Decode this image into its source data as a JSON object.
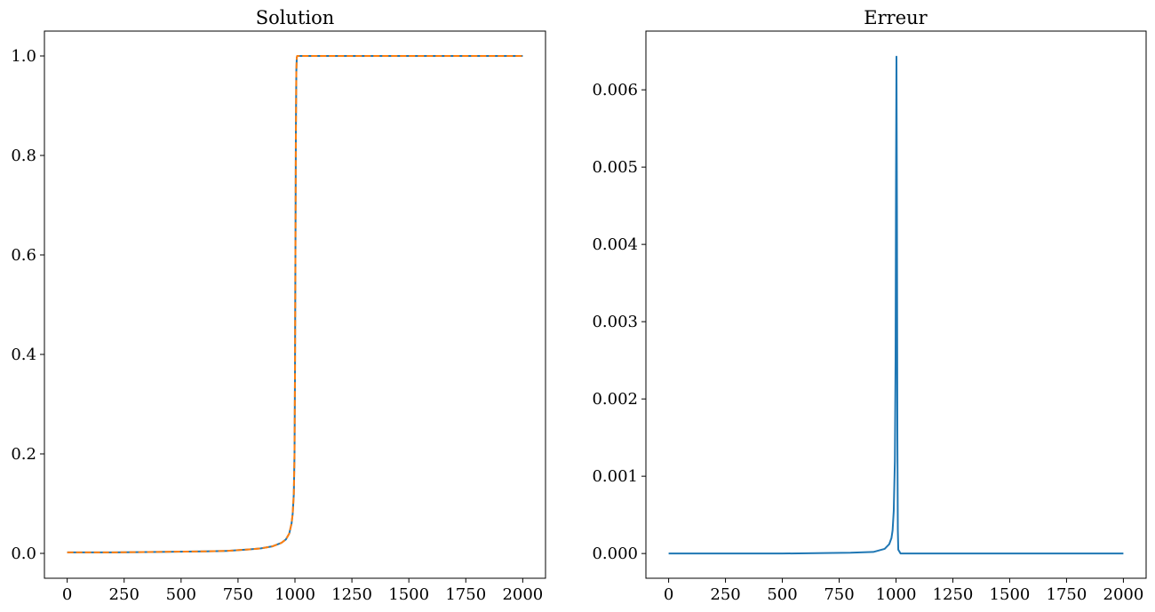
{
  "chart_data": [
    {
      "type": "line",
      "title": "Solution",
      "xlabel": "",
      "ylabel": "",
      "xlim": [
        -100,
        2100
      ],
      "ylim": [
        -0.05,
        1.05
      ],
      "xticks": [
        0,
        250,
        500,
        750,
        1000,
        1250,
        1500,
        1750,
        2000
      ],
      "xtick_labels": [
        "0",
        "250",
        "500",
        "750",
        "1000",
        "1250",
        "1500",
        "1750",
        "2000"
      ],
      "yticks": [
        0.0,
        0.2,
        0.4,
        0.6,
        0.8,
        1.0
      ],
      "ytick_labels": [
        "0.0",
        "0.2",
        "0.4",
        "0.6",
        "0.8",
        "1.0"
      ],
      "grid": false,
      "series": [
        {
          "color": "#1f77b4",
          "style": "solid",
          "x": [
            0,
            200,
            400,
            600,
            700,
            800,
            850,
            900,
            940,
            960,
            975,
            985,
            990,
            995,
            998,
            1000,
            1002,
            1004,
            1006,
            1008,
            1010,
            1020,
            1100,
            1500,
            2000
          ],
          "y": [
            0.002,
            0.002,
            0.003,
            0.004,
            0.005,
            0.008,
            0.01,
            0.014,
            0.021,
            0.028,
            0.04,
            0.06,
            0.08,
            0.12,
            0.2,
            0.35,
            0.6,
            0.85,
            0.97,
            0.997,
            1.0,
            1.0,
            1.0,
            1.0,
            1.0
          ]
        },
        {
          "color": "#ff7f0e",
          "style": "dashed",
          "x": [
            0,
            200,
            400,
            600,
            700,
            800,
            850,
            900,
            940,
            960,
            975,
            985,
            990,
            995,
            998,
            1000,
            1002,
            1004,
            1006,
            1008,
            1010,
            1020,
            1100,
            1500,
            2000
          ],
          "y": [
            0.002,
            0.002,
            0.003,
            0.004,
            0.005,
            0.008,
            0.01,
            0.014,
            0.021,
            0.028,
            0.04,
            0.06,
            0.08,
            0.12,
            0.2,
            0.35,
            0.6,
            0.85,
            0.97,
            0.997,
            1.0,
            1.0,
            1.0,
            1.0,
            1.0
          ]
        }
      ]
    },
    {
      "type": "line",
      "title": "Erreur",
      "xlabel": "",
      "ylabel": "",
      "xlim": [
        -100,
        2100
      ],
      "ylim": [
        -0.00032,
        0.00676
      ],
      "xticks": [
        0,
        250,
        500,
        750,
        1000,
        1250,
        1500,
        1750,
        2000
      ],
      "xtick_labels": [
        "0",
        "250",
        "500",
        "750",
        "1000",
        "1250",
        "1500",
        "1750",
        "2000"
      ],
      "yticks": [
        0.0,
        0.001,
        0.002,
        0.003,
        0.004,
        0.005,
        0.006
      ],
      "ytick_labels": [
        "0.000",
        "0.001",
        "0.002",
        "0.003",
        "0.004",
        "0.005",
        "0.006"
      ],
      "grid": false,
      "series": [
        {
          "color": "#1f77b4",
          "style": "solid",
          "x": [
            0,
            500,
            800,
            900,
            950,
            970,
            980,
            985,
            990,
            995,
            998,
            1000,
            1002,
            1004,
            1006,
            1008,
            1010,
            1020,
            1100,
            1500,
            2000
          ],
          "y": [
            0.0,
            0.0,
            1e-05,
            2e-05,
            6e-05,
            0.00012,
            0.0002,
            0.0003,
            0.00055,
            0.0012,
            0.0025,
            0.0048,
            0.00643,
            0.0045,
            0.0015,
            0.0003,
            5e-05,
            0.0,
            0.0,
            0.0,
            0.0
          ]
        }
      ]
    }
  ]
}
